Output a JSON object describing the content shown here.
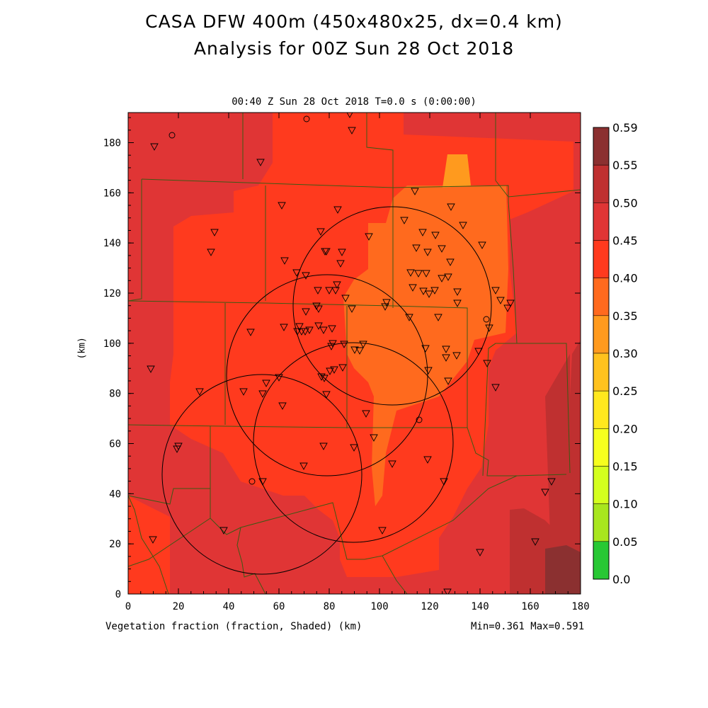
{
  "title_line1": "CASA DFW 400m (450x480x25, dx=0.4 km)",
  "title_line2": "Analysis for 00Z Sun 28 Oct 2018",
  "subtitle": "00:40 Z Sun 28 Oct 2018    T=0.0 s (0:00:00)",
  "x_axis_label": "Vegetation fraction (fraction, Shaded)  (km)",
  "y_axis_label": "(km)",
  "minmax_text": "Min=0.361 Max=0.591",
  "x_ticks": [
    "0",
    "20",
    "40",
    "60",
    "80",
    "100",
    "120",
    "140",
    "160",
    "180"
  ],
  "y_ticks": [
    "0",
    "20",
    "40",
    "60",
    "80",
    "100",
    "120",
    "140",
    "160",
    "180"
  ],
  "x_range": [
    0,
    180
  ],
  "y_range": [
    0,
    192
  ],
  "colorbar": {
    "labels": [
      "0.59",
      "0.55",
      "0.50",
      "0.45",
      "0.40",
      "0.35",
      "0.30",
      "0.25",
      "0.20",
      "0.15",
      "0.10",
      "0.05",
      "0.0"
    ],
    "colors": [
      "#8b3030",
      "#bf3030",
      "#e03535",
      "#ff3a1e",
      "#ff6a1e",
      "#ff9a1e",
      "#ffc21e",
      "#ffe81e",
      "#f6ff1e",
      "#d4ff1e",
      "#a8e61e",
      "#28c834",
      "#1ec03c",
      "#1ee896"
    ]
  },
  "colors": {
    "frame": "#000000",
    "county_line": "#3c5a14",
    "map_background": "#e03535",
    "class_040_045": "#ff3a1e",
    "class_035_040": "#ff6a1e",
    "class_030_035": "#ff9a1e",
    "class_050_055": "#bf3030",
    "class_055_059": "#8b3030"
  }
}
